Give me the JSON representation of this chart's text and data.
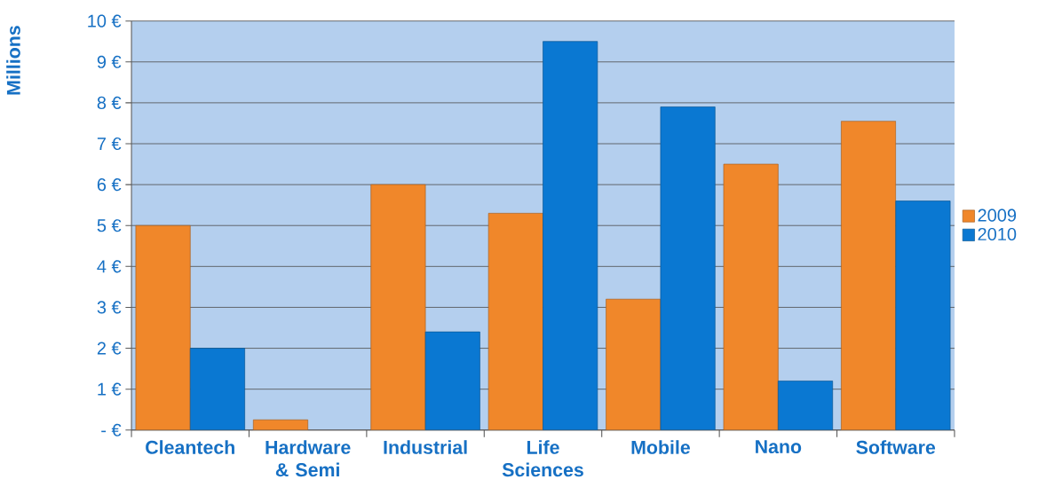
{
  "chart_data": {
    "type": "bar",
    "ylabel": "Millions",
    "categories": [
      "Cleantech",
      "Hardware & Semi",
      "Industrial",
      "Life Sciences",
      "Mobile",
      "Nano",
      "Software"
    ],
    "series": [
      {
        "name": "2009",
        "color": "#f0872a",
        "values": [
          5.0,
          0.25,
          6.0,
          5.3,
          3.2,
          6.5,
          7.55
        ]
      },
      {
        "name": "2010",
        "color": "#0a78d2",
        "values": [
          2.0,
          null,
          2.4,
          9.5,
          7.9,
          1.2,
          5.6
        ]
      }
    ],
    "ylim": [
      0,
      10
    ],
    "yticks": [
      {
        "value": 0,
        "label": "-  €"
      },
      {
        "value": 1,
        "label": "1 €"
      },
      {
        "value": 2,
        "label": "2 €"
      },
      {
        "value": 3,
        "label": "3 €"
      },
      {
        "value": 4,
        "label": "4 €"
      },
      {
        "value": 5,
        "label": "5 €"
      },
      {
        "value": 6,
        "label": "6 €"
      },
      {
        "value": 7,
        "label": "7 €"
      },
      {
        "value": 8,
        "label": "8 €"
      },
      {
        "value": 9,
        "label": "9 €"
      },
      {
        "value": 10,
        "label": "10 €"
      }
    ],
    "grid": "y",
    "legend": "right"
  }
}
